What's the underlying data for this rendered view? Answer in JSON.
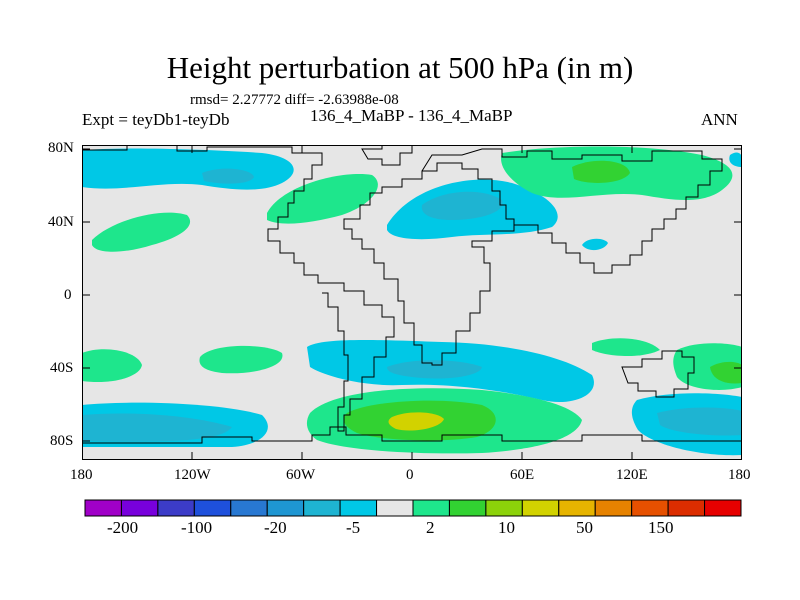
{
  "title": "Height perturbation at 500 hPa (in m)",
  "stats": "rmsd= 2.27772  diff= -2.63988e-08",
  "expt": "Expt = teyDb1-teyDb",
  "subtitle": "136_4_MaBP - 136_4_MaBP",
  "season": "ANN",
  "lat_labels": [
    "80N",
    "40N",
    "0",
    "40S",
    "80S"
  ],
  "lon_labels": [
    "180",
    "120W",
    "60W",
    "0",
    "60E",
    "120E",
    "180"
  ],
  "colorbar": {
    "labels": [
      "-200",
      "-100",
      "-20",
      "-5",
      "2",
      "10",
      "50",
      "150"
    ],
    "colors": [
      "#a000c8",
      "#7800dc",
      "#3c3cc8",
      "#1e50dc",
      "#2878d2",
      "#1e96d2",
      "#1eb4d2",
      "#00c8e6",
      "#e6e6e6",
      "#1ee68c",
      "#32d232",
      "#8cd20a",
      "#d2d200",
      "#e6b400",
      "#e68200",
      "#e65000",
      "#dc2d00",
      "#e60000"
    ],
    "colors_meaning": "filled contour intervals from most negative to most positive"
  },
  "palette": {
    "background_field": "#e6e6e6",
    "neg_light": "#00c8e6",
    "neg_mid": "#1eb4d2",
    "pos_light": "#1ee68c",
    "pos_mid": "#32d232",
    "pos_high": "#d2d200"
  }
}
